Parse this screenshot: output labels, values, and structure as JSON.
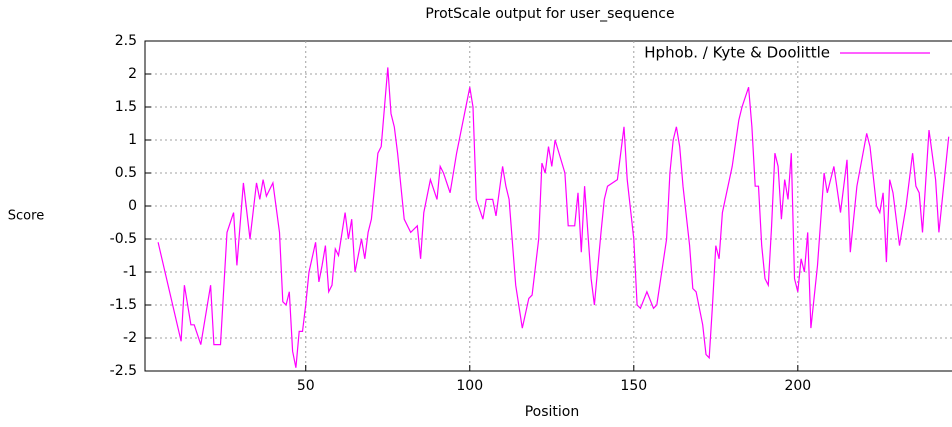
{
  "chart_data": {
    "type": "line",
    "title": "ProtScale output for user_sequence",
    "xlabel": "Position",
    "ylabel": "Score",
    "x": [
      5,
      12,
      13,
      15,
      16,
      18,
      21,
      22,
      24,
      26,
      28,
      29,
      31,
      33,
      35,
      36,
      37,
      38,
      40,
      42,
      43,
      44,
      45,
      46,
      47,
      48,
      49,
      50,
      51,
      53,
      54,
      55,
      56,
      57,
      58,
      59,
      60,
      62,
      63,
      64,
      65,
      67,
      68,
      69,
      70,
      72,
      73,
      74,
      75,
      76,
      77,
      78,
      80,
      82,
      84,
      85,
      86,
      88,
      90,
      91,
      92,
      94,
      96,
      98,
      100,
      101,
      102,
      104,
      105,
      107,
      108,
      110,
      111,
      112,
      114,
      116,
      118,
      119,
      121,
      122,
      123,
      124,
      125,
      126,
      129,
      130,
      132,
      133,
      134,
      135,
      137,
      138,
      140,
      141,
      142,
      145,
      147,
      148,
      150,
      151,
      152,
      154,
      156,
      157,
      160,
      161,
      162,
      163,
      164,
      165,
      167,
      168,
      169,
      171,
      172,
      173,
      174,
      175,
      176,
      177,
      180,
      182,
      183,
      185,
      186,
      187,
      188,
      189,
      190,
      191,
      192,
      193,
      194,
      195,
      196,
      197,
      198,
      199,
      200,
      201,
      202,
      203,
      204,
      206,
      208,
      209,
      211,
      213,
      215,
      216,
      218,
      221,
      222,
      224,
      225,
      226,
      227,
      228,
      229,
      231,
      233,
      235,
      236,
      237,
      238,
      240,
      242,
      243,
      246
    ],
    "series": [
      {
        "name": "Hphob. / Kyte & Doolittle",
        "color": "#ff00ff",
        "values": [
          -0.55,
          -2.05,
          -1.2,
          -1.8,
          -1.8,
          -2.1,
          -1.2,
          -2.1,
          -2.1,
          -0.4,
          -0.1,
          -0.9,
          0.35,
          -0.5,
          0.35,
          0.1,
          0.4,
          0.15,
          0.35,
          -0.4,
          -1.45,
          -1.5,
          -1.3,
          -2.2,
          -2.45,
          -1.9,
          -1.9,
          -1.5,
          -1.0,
          -0.55,
          -1.15,
          -0.9,
          -0.6,
          -1.3,
          -1.2,
          -0.65,
          -0.75,
          -0.1,
          -0.5,
          -0.2,
          -1.0,
          -0.5,
          -0.8,
          -0.4,
          -0.2,
          0.8,
          0.9,
          1.5,
          2.1,
          1.4,
          1.2,
          0.8,
          -0.2,
          -0.4,
          -0.3,
          -0.8,
          -0.1,
          0.4,
          0.1,
          0.6,
          0.5,
          0.2,
          0.8,
          1.3,
          1.8,
          1.5,
          0.1,
          -0.2,
          0.1,
          0.1,
          -0.15,
          0.6,
          0.3,
          0.1,
          -1.2,
          -1.85,
          -1.4,
          -1.35,
          -0.5,
          0.65,
          0.5,
          0.9,
          0.6,
          1.0,
          0.5,
          -0.3,
          -0.3,
          0.2,
          -0.7,
          0.3,
          -1.1,
          -1.5,
          -0.4,
          0.1,
          0.3,
          0.4,
          1.2,
          0.4,
          -0.5,
          -1.5,
          -1.55,
          -1.3,
          -1.55,
          -1.5,
          -0.5,
          0.5,
          1.0,
          1.2,
          0.9,
          0.3,
          -0.6,
          -1.25,
          -1.3,
          -1.8,
          -2.25,
          -2.3,
          -1.5,
          -0.6,
          -0.8,
          -0.1,
          0.6,
          1.3,
          1.5,
          1.8,
          1.2,
          0.3,
          0.3,
          -0.6,
          -1.1,
          -1.2,
          -0.3,
          0.8,
          0.6,
          -0.2,
          0.4,
          0.1,
          0.8,
          -1.1,
          -1.3,
          -0.8,
          -1.0,
          -0.4,
          -1.85,
          -0.9,
          0.5,
          0.2,
          0.6,
          -0.1,
          0.7,
          -0.7,
          0.3,
          1.1,
          0.9,
          0.0,
          -0.1,
          0.2,
          -0.85,
          0.4,
          0.2,
          -0.6,
          0.0,
          0.8,
          0.3,
          0.2,
          -0.4,
          1.15,
          0.4,
          -0.4,
          1.05
        ]
      }
    ],
    "xlim": [
      1,
      247
    ],
    "ylim": [
      -2.5,
      2.5
    ],
    "xticks": [
      50,
      100,
      150,
      200
    ],
    "yticks": [
      -2.5,
      -2,
      -1.5,
      -1,
      -0.5,
      0,
      0.5,
      1,
      1.5,
      2,
      2.5
    ],
    "grid": true,
    "legend": "top-right"
  }
}
